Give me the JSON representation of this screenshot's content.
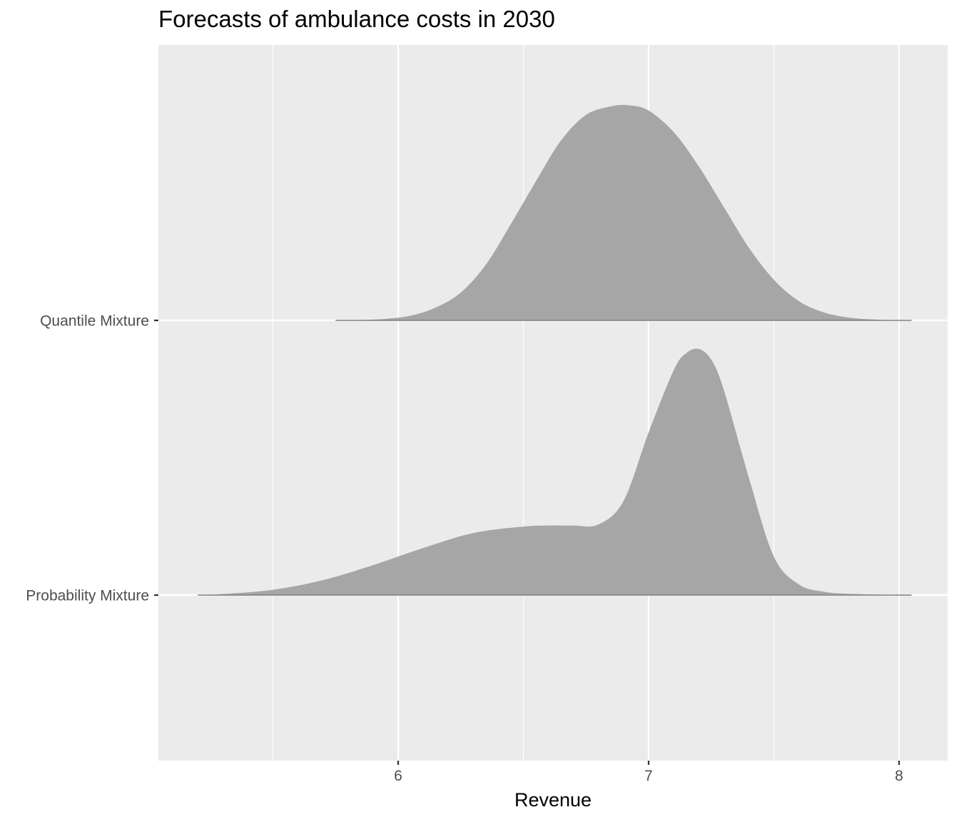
{
  "chart_data": {
    "type": "ridgeline",
    "title": "Forecasts of ambulance costs in 2030",
    "xlabel": "Revenue",
    "ylabel": "",
    "xlim": [
      5.04,
      8.2
    ],
    "x_ticks": [
      6,
      7,
      8
    ],
    "x_tick_labels": [
      "6",
      "7",
      "8"
    ],
    "grid": true,
    "panel_color": "#ebebeb",
    "fill_color": "#a6a6a6",
    "categories": [
      "Probability Mixture",
      "Quantile Mixture"
    ],
    "series": [
      {
        "name": "Quantile Mixture",
        "x": [
          5.75,
          5.85,
          5.95,
          6.05,
          6.15,
          6.25,
          6.35,
          6.45,
          6.55,
          6.65,
          6.75,
          6.85,
          6.92,
          7.0,
          7.1,
          7.2,
          7.3,
          7.4,
          7.5,
          7.6,
          7.7,
          7.8,
          7.9,
          8.0,
          8.05
        ],
        "density": [
          0.0,
          0.002,
          0.007,
          0.022,
          0.06,
          0.13,
          0.26,
          0.45,
          0.65,
          0.84,
          0.96,
          1.0,
          1.005,
          0.98,
          0.88,
          0.72,
          0.53,
          0.34,
          0.19,
          0.09,
          0.037,
          0.013,
          0.004,
          0.001,
          0.0
        ]
      },
      {
        "name": "Probability Mixture",
        "x": [
          5.2,
          5.3,
          5.5,
          5.7,
          5.9,
          6.1,
          6.3,
          6.5,
          6.6,
          6.7,
          6.8,
          6.9,
          7.0,
          7.1,
          7.15,
          7.2,
          7.25,
          7.3,
          7.4,
          7.5,
          7.6,
          7.7,
          7.8,
          8.0,
          8.05
        ],
        "density": [
          0.0,
          0.005,
          0.025,
          0.07,
          0.14,
          0.22,
          0.29,
          0.32,
          0.325,
          0.325,
          0.33,
          0.44,
          0.76,
          1.05,
          1.13,
          1.15,
          1.1,
          0.96,
          0.55,
          0.18,
          0.05,
          0.016,
          0.006,
          0.001,
          0.0
        ]
      }
    ]
  }
}
